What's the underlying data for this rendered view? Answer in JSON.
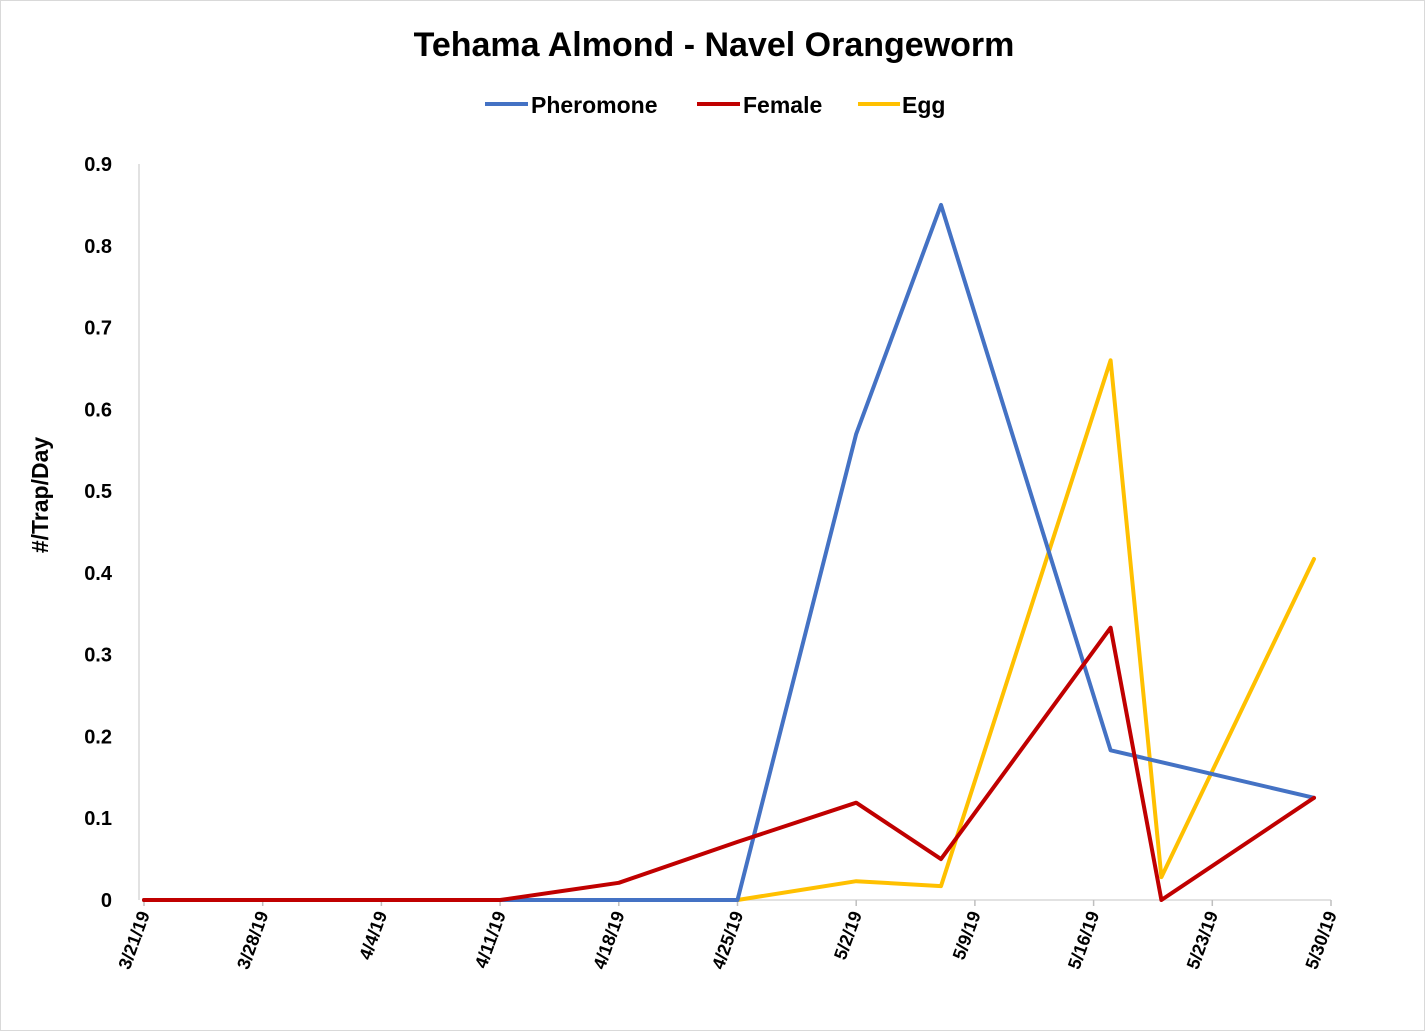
{
  "chart_data": {
    "type": "line",
    "title": "Tehama Almond - Navel Orangeworm",
    "xlabel": "",
    "ylabel": "#/Trap/Day",
    "ylim": [
      0,
      0.9
    ],
    "yticks": [
      "0",
      "0.1",
      "0.2",
      "0.3",
      "0.4",
      "0.5",
      "0.6",
      "0.7",
      "0.8",
      "0.9"
    ],
    "xlim": [
      "2019-03-21",
      "2019-05-30"
    ],
    "xtick_labels": [
      "3/21/19",
      "3/28/19",
      "4/4/19",
      "4/11/19",
      "4/18/19",
      "4/25/19",
      "5/2/19",
      "5/9/19",
      "5/16/19",
      "5/23/19",
      "5/30/19"
    ],
    "xtick_dates": [
      "2019-03-21",
      "2019-03-28",
      "2019-04-04",
      "2019-04-11",
      "2019-04-18",
      "2019-04-25",
      "2019-05-02",
      "2019-05-09",
      "2019-05-16",
      "2019-05-23",
      "2019-05-30"
    ],
    "grid": false,
    "legend_position": "top",
    "series": [
      {
        "name": "Pheromone",
        "color": "#4472C4",
        "points": [
          {
            "x": "2019-03-21",
            "y": 0
          },
          {
            "x": "2019-04-11",
            "y": 0
          },
          {
            "x": "2019-04-18",
            "y": 0
          },
          {
            "x": "2019-04-25",
            "y": 0
          },
          {
            "x": "2019-05-02",
            "y": 0.57
          },
          {
            "x": "2019-05-07",
            "y": 0.85
          },
          {
            "x": "2019-05-17",
            "y": 0.183
          },
          {
            "x": "2019-05-29",
            "y": 0.125
          }
        ]
      },
      {
        "name": "Female",
        "color": "#C00000",
        "points": [
          {
            "x": "2019-03-21",
            "y": 0
          },
          {
            "x": "2019-04-11",
            "y": 0
          },
          {
            "x": "2019-04-18",
            "y": 0.021
          },
          {
            "x": "2019-04-25",
            "y": 0.071
          },
          {
            "x": "2019-05-02",
            "y": 0.119
          },
          {
            "x": "2019-05-07",
            "y": 0.05
          },
          {
            "x": "2019-05-17",
            "y": 0.333
          },
          {
            "x": "2019-05-20",
            "y": 0
          },
          {
            "x": "2019-05-29",
            "y": 0.125
          }
        ]
      },
      {
        "name": "Egg",
        "color": "#FFC000",
        "points": [
          {
            "x": "2019-03-21",
            "y": 0
          },
          {
            "x": "2019-04-11",
            "y": 0
          },
          {
            "x": "2019-04-18",
            "y": 0
          },
          {
            "x": "2019-04-25",
            "y": 0
          },
          {
            "x": "2019-05-02",
            "y": 0.023
          },
          {
            "x": "2019-05-07",
            "y": 0.017
          },
          {
            "x": "2019-05-17",
            "y": 0.66
          },
          {
            "x": "2019-05-20",
            "y": 0.028
          },
          {
            "x": "2019-05-29",
            "y": 0.417
          }
        ]
      }
    ]
  }
}
